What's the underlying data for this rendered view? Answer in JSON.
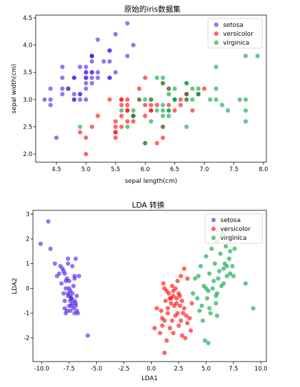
{
  "chart_data": [
    {
      "type": "scatter",
      "title": "原始的iris数据集",
      "xlabel": "sepal length(cm)",
      "ylabel": "sepal width(cm)",
      "xlim": [
        4.15,
        8.05
      ],
      "ylim": [
        1.85,
        4.55
      ],
      "xticks": [
        "4.5",
        "5.0",
        "5.5",
        "6.0",
        "6.5",
        "7.0",
        "7.5",
        "8.0"
      ],
      "yticks": [
        "2.0",
        "2.5",
        "3.0",
        "3.5",
        "4.0",
        "4.5"
      ],
      "grid": false,
      "legend_position": "top-right",
      "series": [
        {
          "name": "setosa",
          "color": "#4b19e6",
          "x": [
            5.1,
            4.9,
            4.7,
            4.6,
            5.0,
            5.4,
            4.6,
            5.0,
            4.4,
            4.9,
            5.4,
            4.8,
            4.8,
            4.3,
            5.8,
            5.7,
            5.4,
            5.1,
            5.7,
            5.1,
            5.4,
            5.1,
            4.6,
            5.1,
            4.8,
            5.0,
            5.0,
            5.2,
            5.2,
            4.7,
            4.8,
            5.4,
            5.2,
            5.5,
            4.9,
            5.0,
            5.5,
            4.9,
            4.4,
            5.1,
            5.0,
            4.5,
            4.4,
            5.0,
            5.1,
            4.8,
            5.1,
            4.6,
            5.3,
            5.0
          ],
          "y": [
            3.5,
            3.0,
            3.2,
            3.1,
            3.6,
            3.9,
            3.4,
            3.4,
            2.9,
            3.1,
            3.7,
            3.4,
            3.0,
            3.0,
            4.0,
            4.4,
            3.9,
            3.5,
            3.8,
            3.8,
            3.4,
            3.7,
            3.6,
            3.3,
            3.4,
            3.0,
            3.4,
            3.5,
            3.4,
            3.2,
            3.1,
            3.4,
            4.1,
            4.2,
            3.1,
            3.2,
            3.5,
            3.6,
            3.0,
            3.4,
            3.5,
            2.3,
            3.2,
            3.5,
            3.8,
            3.0,
            3.8,
            3.2,
            3.7,
            3.3
          ]
        },
        {
          "name": "versicolor",
          "color": "#ff0000",
          "x": [
            7.0,
            6.4,
            6.9,
            5.5,
            6.5,
            5.7,
            6.3,
            4.9,
            6.6,
            5.2,
            5.0,
            5.9,
            6.0,
            6.1,
            5.6,
            6.7,
            5.6,
            5.8,
            6.2,
            5.6,
            5.9,
            6.1,
            6.3,
            6.1,
            6.4,
            6.6,
            6.8,
            6.7,
            6.0,
            5.7,
            5.5,
            5.5,
            5.8,
            6.0,
            5.4,
            6.0,
            6.7,
            6.3,
            5.6,
            5.5,
            5.5,
            6.1,
            5.8,
            5.0,
            5.6,
            5.7,
            5.7,
            6.2,
            5.1,
            5.7
          ],
          "y": [
            3.2,
            3.2,
            3.1,
            2.3,
            2.8,
            2.8,
            3.3,
            2.4,
            2.9,
            2.7,
            2.0,
            3.0,
            2.2,
            2.9,
            2.9,
            3.1,
            3.0,
            2.7,
            2.2,
            2.5,
            3.2,
            2.8,
            2.5,
            2.8,
            2.9,
            3.0,
            2.8,
            3.0,
            2.9,
            2.6,
            2.4,
            2.4,
            2.7,
            2.7,
            3.0,
            3.4,
            3.1,
            2.3,
            3.0,
            2.5,
            2.6,
            3.0,
            2.6,
            2.3,
            2.7,
            3.0,
            2.9,
            2.9,
            2.5,
            2.8
          ]
        },
        {
          "name": "virginica",
          "color": "#00a040",
          "x": [
            6.3,
            5.8,
            7.1,
            6.3,
            6.5,
            7.6,
            4.9,
            7.3,
            6.7,
            7.2,
            6.5,
            6.4,
            6.8,
            5.7,
            5.8,
            6.4,
            6.5,
            7.7,
            7.7,
            6.0,
            6.9,
            5.6,
            7.7,
            6.3,
            6.7,
            7.2,
            6.2,
            6.1,
            6.4,
            7.2,
            7.4,
            7.9,
            6.4,
            6.3,
            6.1,
            7.7,
            6.3,
            6.4,
            6.0,
            6.9,
            6.7,
            6.9,
            5.8,
            6.8,
            6.7,
            6.7,
            6.3,
            6.5,
            6.2,
            5.9
          ],
          "y": [
            3.3,
            2.7,
            3.0,
            2.9,
            3.0,
            3.0,
            2.5,
            2.9,
            2.5,
            3.6,
            3.2,
            2.7,
            3.0,
            2.5,
            2.8,
            3.2,
            3.0,
            3.8,
            2.6,
            2.2,
            3.2,
            2.8,
            2.8,
            2.7,
            3.3,
            3.2,
            2.8,
            3.0,
            2.8,
            3.0,
            2.8,
            3.8,
            2.8,
            2.8,
            2.6,
            3.0,
            3.4,
            3.1,
            3.0,
            3.1,
            3.1,
            3.1,
            2.7,
            3.2,
            3.3,
            3.0,
            2.5,
            3.0,
            3.4,
            3.0
          ]
        }
      ]
    },
    {
      "type": "scatter",
      "title": "LDA 转换",
      "xlabel": "LDA1",
      "ylabel": "LDA2",
      "xlim": [
        -10.8,
        10.5
      ],
      "ylim": [
        -2.95,
        3.15
      ],
      "xticks": [
        "-10.0",
        "-7.5",
        "-5.0",
        "-2.5",
        "0.0",
        "2.5",
        "5.0",
        "7.5",
        "10.0"
      ],
      "yticks": [
        "-2",
        "-1",
        "0",
        "1",
        "2",
        "3"
      ],
      "grid": false,
      "legend_position": "top-right",
      "series": [
        {
          "name": "setosa",
          "color": "#4b19e6",
          "x": [
            -9.4,
            -10.1,
            -9.2,
            -8.8,
            -8.3,
            -7.6,
            -7.9,
            -8.1,
            -8.6,
            -7.2,
            -6.9,
            -7.7,
            -8.4,
            -7.5,
            -7.0,
            -7.8,
            -8.0,
            -7.4,
            -7.1,
            -7.6,
            -7.3,
            -6.8,
            -7.0,
            -7.9,
            -7.5,
            -7.2,
            -6.8,
            -7.1,
            -7.4,
            -7.8,
            -7.0,
            -6.7,
            -7.3,
            -7.6,
            -8.2,
            -7.9,
            -7.4,
            -7.2,
            -6.9,
            -7.5,
            -7.7,
            -7.3,
            -7.0,
            -6.6,
            -6.9,
            -7.4,
            -7.8,
            -5.8,
            -7.6,
            -8.0
          ],
          "y": [
            2.7,
            1.8,
            1.6,
            1.0,
            0.9,
            1.2,
            0.6,
            0.8,
            0.5,
            0.9,
            1.2,
            0.4,
            0.6,
            0.3,
            0.5,
            0.0,
            -0.2,
            -0.1,
            0.1,
            -0.3,
            -0.4,
            -0.3,
            -0.5,
            -0.8,
            -0.7,
            -0.6,
            -0.9,
            -0.8,
            -0.5,
            -1.0,
            -1.0,
            -1.0,
            -0.7,
            -0.2,
            0.2,
            -0.5,
            -0.9,
            -0.2,
            -0.6,
            0.0,
            -0.9,
            -0.4,
            0.4,
            0.5,
            -0.7,
            -0.3,
            0.3,
            -1.9,
            1.0,
            0.7
          ]
        },
        {
          "name": "versicolor",
          "color": "#ff0000",
          "x": [
            0.3,
            0.8,
            1.2,
            1.5,
            1.8,
            2.0,
            2.2,
            2.5,
            2.8,
            3.0,
            3.2,
            1.1,
            1.4,
            1.7,
            2.1,
            2.4,
            2.7,
            0.9,
            1.3,
            1.6,
            1.9,
            2.3,
            2.6,
            2.9,
            3.3,
            3.6,
            1.0,
            1.5,
            1.8,
            2.2,
            2.5,
            2.8,
            3.1,
            3.5,
            1.2,
            1.7,
            2.0,
            2.4,
            2.7,
            3.0,
            3.3,
            0.5,
            1.0,
            1.4,
            1.9,
            2.3,
            2.6,
            1.2,
            2.0,
            3.7
          ],
          "y": [
            -1.6,
            -1.8,
            -1.3,
            -1.0,
            -0.6,
            -0.3,
            0.0,
            -0.2,
            -0.5,
            -0.8,
            -1.1,
            0.2,
            -0.1,
            -0.4,
            -0.7,
            -1.0,
            -1.3,
            -0.9,
            -0.5,
            -0.2,
            0.1,
            -0.4,
            -0.7,
            -1.0,
            -1.4,
            -1.7,
            -1.2,
            -0.8,
            -0.4,
            -1.1,
            -1.5,
            -1.9,
            -2.0,
            -1.2,
            0.0,
            -1.6,
            -1.8,
            0.3,
            0.5,
            0.8,
            0.4,
            -0.8,
            -1.5,
            -2.1,
            -1.3,
            -0.6,
            -0.3,
            -2.6,
            -0.1,
            -0.6
          ]
        },
        {
          "name": "virginica",
          "color": "#00a040",
          "x": [
            4.0,
            4.5,
            5.0,
            5.5,
            6.0,
            6.5,
            7.0,
            4.2,
            4.8,
            5.3,
            5.8,
            6.3,
            6.8,
            7.3,
            4.4,
            5.1,
            5.6,
            6.1,
            6.6,
            7.1,
            7.6,
            3.8,
            4.6,
            5.2,
            5.7,
            6.2,
            6.7,
            7.2,
            8.0,
            4.9,
            5.4,
            5.9,
            6.4,
            6.9,
            7.4,
            4.7,
            5.3,
            6.0,
            6.6,
            7.2,
            8.6,
            9.3,
            4.3,
            5.0,
            5.9,
            6.9,
            7.5,
            6.0,
            5.2,
            6.8
          ],
          "y": [
            0.4,
            0.9,
            1.3,
            1.6,
            1.9,
            2.2,
            2.7,
            -0.4,
            0.1,
            0.6,
            1.0,
            1.4,
            1.7,
            2.1,
            -0.9,
            -0.4,
            0.0,
            0.4,
            0.8,
            1.2,
            1.6,
            -0.2,
            -0.7,
            -0.1,
            0.3,
            0.7,
            1.0,
            1.5,
            2.1,
            -2.1,
            -1.0,
            -0.3,
            0.1,
            0.5,
            0.9,
            -1.3,
            -0.8,
            -0.2,
            0.2,
            0.6,
            0.2,
            -0.8,
            0.5,
            0.0,
            -0.6,
            0.9,
            0.5,
            -1.1,
            -2.2,
            2.4
          ]
        }
      ]
    }
  ]
}
